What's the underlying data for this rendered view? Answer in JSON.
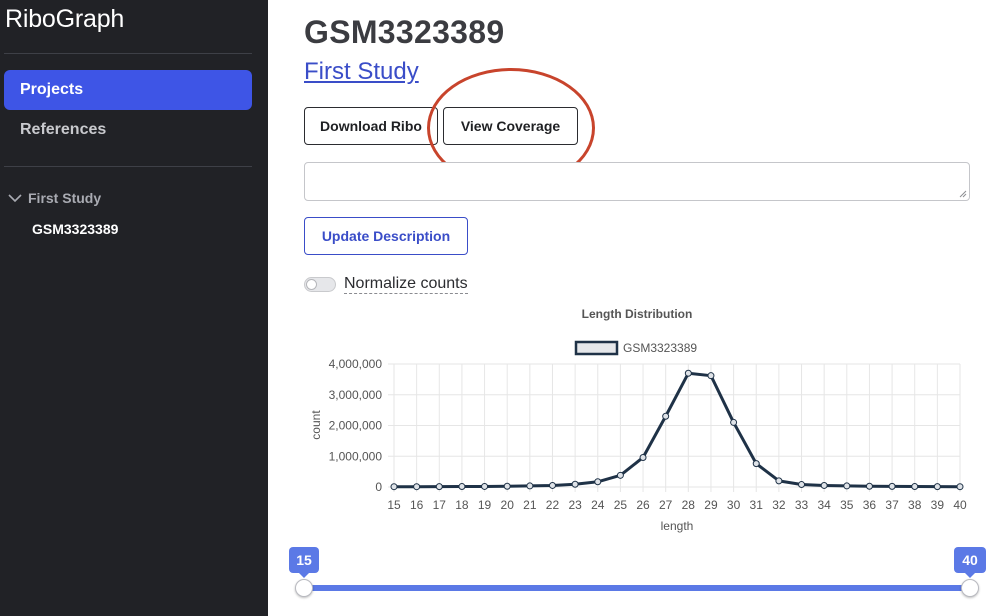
{
  "sidebar": {
    "brand": "RiboGraph",
    "nav": [
      {
        "label": "Projects",
        "active": true
      },
      {
        "label": "References",
        "active": false
      }
    ],
    "tree": {
      "parent_label": "First Study",
      "parent_icon": "chevron-down-icon",
      "child_label": "GSM3323389"
    }
  },
  "main": {
    "title": "GSM3323389",
    "study_link": "First Study",
    "buttons": {
      "download": "Download Ribo",
      "view_coverage": "View Coverage",
      "update_description": "Update Description"
    },
    "description": {
      "value": "",
      "placeholder": ""
    },
    "normalize": {
      "label": "Normalize counts",
      "checked": false
    }
  },
  "slider": {
    "min_value": "15",
    "max_value": "40",
    "low_fraction": 0,
    "high_fraction": 1,
    "color": "#5b79e6"
  },
  "annotation": {
    "highlight_color": "#c8442c",
    "target": "view_coverage"
  },
  "chart_data": {
    "type": "line",
    "title": "Length Distribution",
    "xlabel": "length",
    "ylabel": "count",
    "ylim": [
      0,
      4000000
    ],
    "yticks": [
      "4,000,000",
      "3,000,000",
      "2,000,000",
      "1,000,000",
      "0"
    ],
    "ytick_values": [
      4000000,
      3000000,
      2000000,
      1000000,
      0
    ],
    "x": [
      15,
      16,
      17,
      18,
      19,
      20,
      21,
      22,
      23,
      24,
      25,
      26,
      27,
      28,
      29,
      30,
      31,
      32,
      33,
      34,
      35,
      36,
      37,
      38,
      39,
      40
    ],
    "series": [
      {
        "name": "GSM3323389",
        "color": "#1f3247",
        "values": [
          10000,
          10000,
          12000,
          15000,
          18000,
          25000,
          35000,
          50000,
          90000,
          170000,
          380000,
          960000,
          2300000,
          3700000,
          3620000,
          2100000,
          760000,
          200000,
          80000,
          50000,
          35000,
          25000,
          20000,
          15000,
          12000,
          10000
        ]
      }
    ],
    "legend_position": "top",
    "grid": true
  }
}
